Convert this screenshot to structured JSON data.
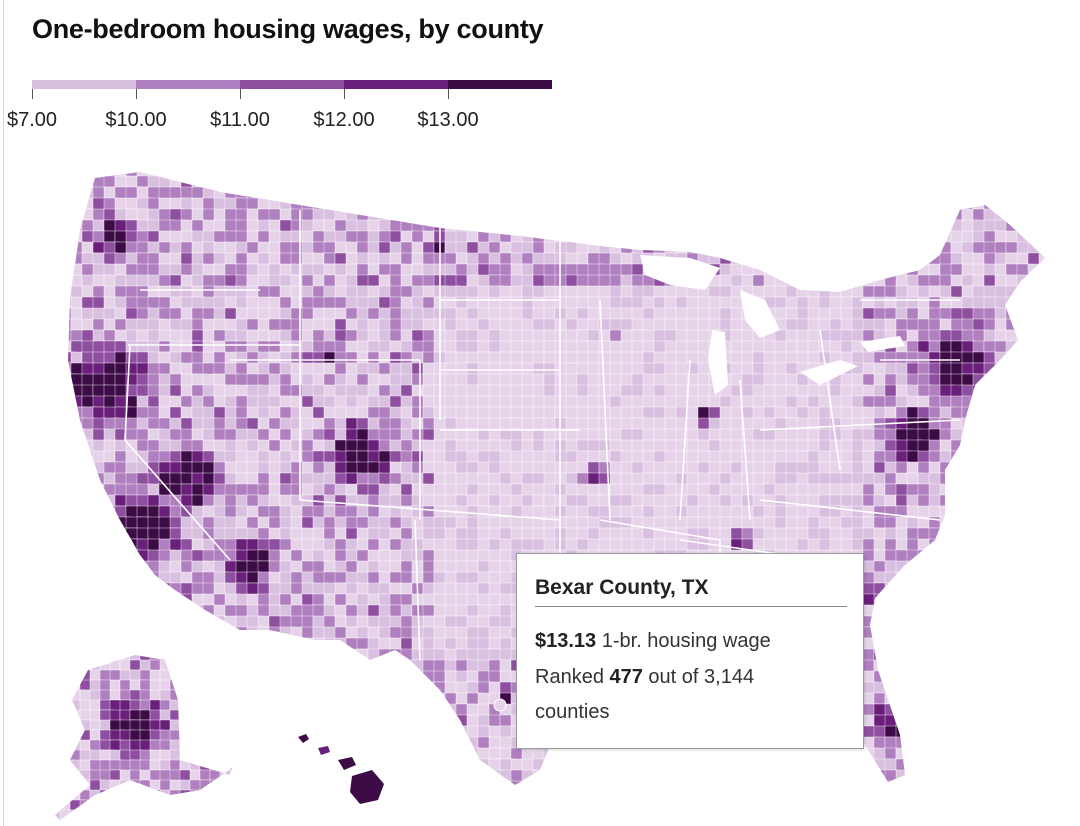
{
  "title": "One-bedroom housing wages, by county",
  "legend": {
    "labels": [
      "$7.00",
      "$10.00",
      "$11.00",
      "$12.00",
      "$13.00"
    ],
    "colors": [
      "#d9bfe0",
      "#b07fbf",
      "#8f4fa1",
      "#6a1f7a",
      "#3d0c47"
    ]
  },
  "tooltip": {
    "county": "Bexar County, TX",
    "wage": "$13.13",
    "wage_suffix": " 1-br. housing wage",
    "rank_prefix": "Ranked ",
    "rank": "477",
    "rank_suffix": " out of 3,144",
    "rank_line2": "counties"
  },
  "colors": {
    "background": "#ffffff",
    "state_border": "#ffffff",
    "lightest": "#e6d3ea"
  }
}
